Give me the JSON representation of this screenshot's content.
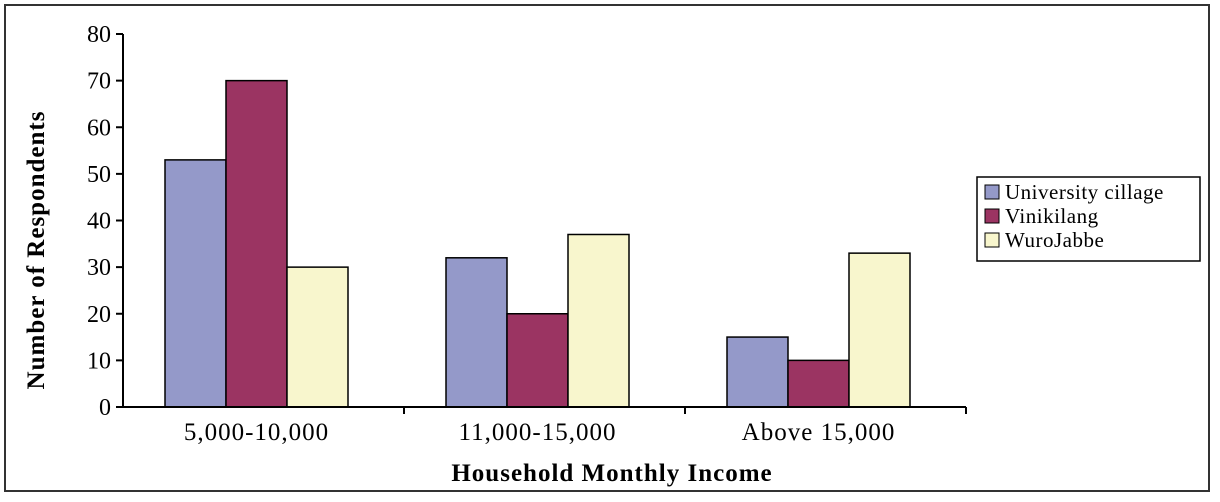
{
  "chart_data": {
    "type": "bar",
    "categories": [
      "5,000-10,000",
      "11,000-15,000",
      "Above 15,000"
    ],
    "series": [
      {
        "name": "University cillage",
        "values": [
          53,
          32,
          15
        ],
        "color": "#9499c9"
      },
      {
        "name": "Vinikilang",
        "values": [
          70,
          20,
          10
        ],
        "color": "#9b3462"
      },
      {
        "name": "WuroJabbe",
        "values": [
          30,
          37,
          33
        ],
        "color": "#f8f6cd"
      }
    ],
    "xlabel": "Household Monthly Income",
    "ylabel": "Number of Respondents",
    "ylim": [
      0,
      80
    ],
    "yticks": [
      "0",
      "10",
      "20",
      "30",
      "40",
      "50",
      "60",
      "70",
      "80"
    ],
    "grid": false,
    "legend_position": "right"
  }
}
